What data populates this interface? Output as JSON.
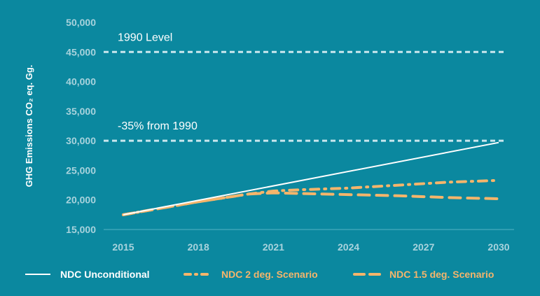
{
  "chart_data": {
    "type": "line",
    "title": "",
    "xlabel": "",
    "ylabel": "GHG Emissions CO₂ eq. Gg.",
    "xlim": [
      2015,
      2030
    ],
    "ylim": [
      15000,
      50000
    ],
    "x_ticks": [
      "2015",
      "2018",
      "2021",
      "2024",
      "2027",
      "2030"
    ],
    "y_ticks": [
      "15,000",
      "20,000",
      "25,000",
      "30,000",
      "35,000",
      "40,000",
      "45,000",
      "50,000"
    ],
    "x_tick_values": [
      2015,
      2018,
      2021,
      2024,
      2027,
      2030
    ],
    "y_tick_values": [
      15000,
      20000,
      25000,
      30000,
      35000,
      40000,
      45000,
      50000
    ],
    "grid": false,
    "legend_position": "bottom",
    "reference_lines": [
      {
        "label": "1990 Level",
        "value": 45000
      },
      {
        "label": "-35% from 1990",
        "value": 30000
      }
    ],
    "series": [
      {
        "name": "NDC Unconditional",
        "color": "#ffffff",
        "style": "solid",
        "x": [
          2015,
          2030
        ],
        "y": [
          17500,
          29700
        ]
      },
      {
        "name": "NDC 2 deg. Scenario",
        "color": "#f5b56b",
        "style": "dash-dot",
        "x": [
          2015,
          2018,
          2020,
          2021,
          2022,
          2024,
          2026,
          2028,
          2030
        ],
        "y": [
          17500,
          19700,
          21000,
          21500,
          21700,
          22000,
          22500,
          23000,
          23300
        ]
      },
      {
        "name": "NDC 1.5 deg. Scenario",
        "color": "#f5b56b",
        "style": "dash",
        "x": [
          2015,
          2018,
          2020,
          2021,
          2022,
          2024,
          2026,
          2028,
          2030
        ],
        "y": [
          17500,
          19700,
          21000,
          21200,
          21100,
          20900,
          20700,
          20400,
          20200
        ]
      }
    ]
  }
}
